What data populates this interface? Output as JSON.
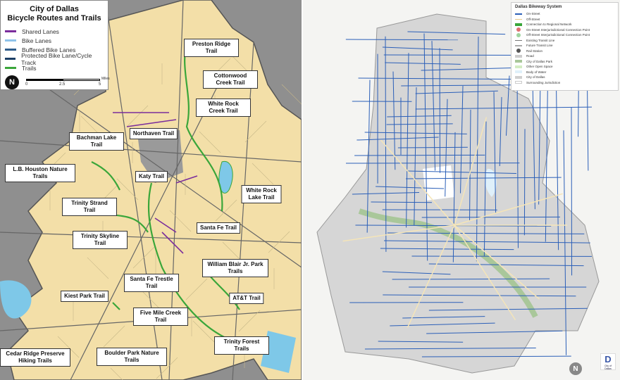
{
  "left_map": {
    "legend": {
      "title_line1": "City of Dallas",
      "title_line2": "Bicycle Routes and Trails",
      "items": [
        {
          "label": "Shared Lanes",
          "color": "#7b2d9c"
        },
        {
          "label": "Bike Lanes",
          "color": "#8fc3ea"
        },
        {
          "label": "Buffered Bike Lanes",
          "color": "#2f5d8c"
        },
        {
          "label": "Protected Bike Lane/Cycle Track",
          "color": "#1c3f66"
        },
        {
          "label": "Trails",
          "color": "#3aa63a"
        }
      ],
      "scale": {
        "ticks": [
          "0",
          "2.5",
          "5"
        ],
        "unit": "Miles"
      }
    },
    "trail_labels": [
      "Preston Ridge Trail",
      "Cottonwood Creek Trail",
      "White Rock Creek Trail",
      "Northaven Trail",
      "Bachman Lake Trail",
      "Katy Trail",
      "L.B. Houston Nature Trails",
      "White Rock Lake Trail",
      "Trinity Strand Trail",
      "Santa Fe Trail",
      "Trinity Skyline Trail",
      "William Blair Jr. Park Trails",
      "Santa Fe Trestle Trail",
      "Kiest Park Trail",
      "AT&T Trail",
      "Five Mile Creek Trail",
      "Trinity Forest Trails",
      "Cedar Ridge Preserve Hiking Trails",
      "Boulder Park Nature Trails"
    ]
  },
  "right_map": {
    "legend": {
      "title": "Dallas Bikeway System",
      "items": [
        {
          "label": "On-Street",
          "color": "#2b5fb8"
        },
        {
          "label": "Off-Street",
          "color": "#e8c98a"
        },
        {
          "label": "Connection to Regional Network",
          "color": "#3aa63a"
        },
        {
          "label": "On-Street Interjurisdictional Connection Point",
          "color": "#e07070"
        },
        {
          "label": "Off-Street Interjurisdictional Connection Point",
          "color": "#9fd49f"
        },
        {
          "label": "Existing Transit Line",
          "color": "#777777"
        },
        {
          "label": "Future Transit Line",
          "color": "#aaaaaa"
        },
        {
          "label": "Rail Station",
          "color": "#555555"
        },
        {
          "label": "Road",
          "color": "#cccccc"
        },
        {
          "label": "City of Dallas Park",
          "color": "#a9c79a"
        },
        {
          "label": "Other Open Space",
          "color": "#d3edc3"
        },
        {
          "label": "Body of Water",
          "color": "#dff0fa"
        },
        {
          "label": "City of Dallas",
          "color": "#cfcfcf"
        },
        {
          "label": "Surrounding Jurisdiction",
          "color": "#ffffff"
        }
      ]
    },
    "logo_text": "City of Dallas"
  }
}
